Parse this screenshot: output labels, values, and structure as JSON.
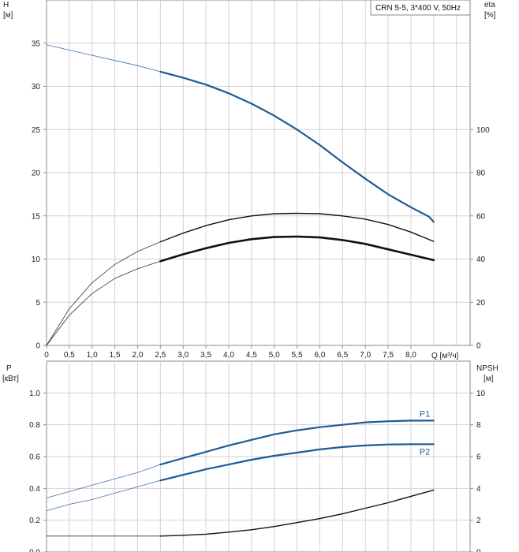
{
  "legend": "CRN 5-5, 3*400 V, 50Hz",
  "colors": {
    "blue": "#1f5a96",
    "black": "#111111",
    "grid": "#d2d2d2",
    "frame": "#8a8a8a"
  },
  "chart_data": [
    {
      "type": "line",
      "panel": "top",
      "left_axis_title": [
        "H",
        "[м]"
      ],
      "right_axis_title": [
        "eta",
        "[%]"
      ],
      "x_axis_title": "Q [м³/ч]",
      "x_tick_labels": [
        "0",
        "0,5",
        "1,0",
        "1,5",
        "2,0",
        "2,5",
        "3,0",
        "3,5",
        "4,0",
        "4,5",
        "5,0",
        "5,5",
        "6,0",
        "6,5",
        "7,0",
        "7,5",
        "8,0"
      ],
      "xlim": [
        0,
        9.3
      ],
      "left_ylim": [
        0,
        40
      ],
      "left_ticks": [
        0,
        5,
        10,
        15,
        20,
        25,
        30,
        35
      ],
      "right_ylim": [
        0,
        160
      ],
      "right_ticks": [
        0,
        20,
        40,
        60,
        80,
        100
      ],
      "legend_position": "top-right",
      "grid": true,
      "series": [
        {
          "axis": "left",
          "color": "blue",
          "operating_from": 2.5,
          "points": [
            [
              0,
              34.8
            ],
            [
              0.5,
              34.2
            ],
            [
              1.0,
              33.6
            ],
            [
              1.5,
              33.0
            ],
            [
              2.0,
              32.4
            ],
            [
              2.5,
              31.7
            ],
            [
              3.0,
              31.0
            ],
            [
              3.5,
              30.2
            ],
            [
              4.0,
              29.2
            ],
            [
              4.5,
              28.0
            ],
            [
              5.0,
              26.6
            ],
            [
              5.5,
              25.0
            ],
            [
              6.0,
              23.2
            ],
            [
              6.5,
              21.2
            ],
            [
              7.0,
              19.3
            ],
            [
              7.5,
              17.5
            ],
            [
              8.0,
              16.0
            ],
            [
              8.4,
              14.9
            ],
            [
              8.5,
              14.3
            ]
          ]
        },
        {
          "axis": "right",
          "color": "black",
          "operating_from": 2.5,
          "points": [
            [
              0,
              0
            ],
            [
              0.5,
              17
            ],
            [
              1.0,
              29
            ],
            [
              1.5,
              37.5
            ],
            [
              2.0,
              43.5
            ],
            [
              2.5,
              48
            ],
            [
              3.0,
              52
            ],
            [
              3.5,
              55.5
            ],
            [
              4.0,
              58.2
            ],
            [
              4.5,
              60
            ],
            [
              5.0,
              61
            ],
            [
              5.5,
              61.2
            ],
            [
              6.0,
              61
            ],
            [
              6.5,
              60
            ],
            [
              7.0,
              58.5
            ],
            [
              7.5,
              56
            ],
            [
              8.0,
              52.5
            ],
            [
              8.5,
              48.2
            ]
          ]
        },
        {
          "axis": "right",
          "color": "black",
          "operating_from": 2.5,
          "bold": true,
          "points": [
            [
              0,
              0
            ],
            [
              0.5,
              14
            ],
            [
              1.0,
              24
            ],
            [
              1.5,
              31
            ],
            [
              2.0,
              35.5
            ],
            [
              2.5,
              39
            ],
            [
              3.0,
              42.2
            ],
            [
              3.5,
              45
            ],
            [
              4.0,
              47.5
            ],
            [
              4.5,
              49.2
            ],
            [
              5.0,
              50.2
            ],
            [
              5.5,
              50.4
            ],
            [
              6.0,
              50
            ],
            [
              6.5,
              48.8
            ],
            [
              7.0,
              47
            ],
            [
              7.5,
              44.5
            ],
            [
              8.0,
              42
            ],
            [
              8.5,
              39.5
            ]
          ]
        }
      ]
    },
    {
      "type": "line",
      "panel": "bottom",
      "left_axis_title": [
        "P",
        "[кВт]"
      ],
      "right_axis_title": [
        "NPSH",
        "[м]"
      ],
      "xlim": [
        0,
        9.3
      ],
      "left_ylim": [
        0,
        1.2
      ],
      "left_ticks": [
        0.0,
        0.2,
        0.4,
        0.6,
        0.8,
        1.0
      ],
      "left_tick_labels": [
        "0.0",
        "0.2",
        "0.4",
        "0.6",
        "0.8",
        "1.0"
      ],
      "right_ylim": [
        0,
        12
      ],
      "right_ticks": [
        0,
        2,
        4,
        6,
        8,
        10
      ],
      "grid": true,
      "series": [
        {
          "name": "P1",
          "axis": "left",
          "color": "blue",
          "operating_from": 2.5,
          "points": [
            [
              0,
              0.34
            ],
            [
              0.5,
              0.38
            ],
            [
              1.0,
              0.42
            ],
            [
              1.5,
              0.46
            ],
            [
              2.0,
              0.5
            ],
            [
              2.5,
              0.55
            ],
            [
              3.0,
              0.59
            ],
            [
              3.5,
              0.63
            ],
            [
              4.0,
              0.67
            ],
            [
              4.5,
              0.705
            ],
            [
              5.0,
              0.74
            ],
            [
              5.5,
              0.765
            ],
            [
              6.0,
              0.785
            ],
            [
              6.5,
              0.8
            ],
            [
              7.0,
              0.815
            ],
            [
              7.5,
              0.822
            ],
            [
              8.0,
              0.826
            ],
            [
              8.5,
              0.826
            ]
          ]
        },
        {
          "name": "P2",
          "axis": "left",
          "color": "blue",
          "operating_from": 2.5,
          "points": [
            [
              0,
              0.26
            ],
            [
              0.5,
              0.3
            ],
            [
              1.0,
              0.33
            ],
            [
              1.5,
              0.37
            ],
            [
              2.0,
              0.41
            ],
            [
              2.5,
              0.45
            ],
            [
              3.0,
              0.485
            ],
            [
              3.5,
              0.52
            ],
            [
              4.0,
              0.55
            ],
            [
              4.5,
              0.58
            ],
            [
              5.0,
              0.605
            ],
            [
              5.5,
              0.625
            ],
            [
              6.0,
              0.645
            ],
            [
              6.5,
              0.66
            ],
            [
              7.0,
              0.67
            ],
            [
              7.5,
              0.676
            ],
            [
              8.0,
              0.678
            ],
            [
              8.5,
              0.678
            ]
          ]
        },
        {
          "axis": "right",
          "color": "black",
          "operating_from": 2.5,
          "points": [
            [
              0,
              1.0
            ],
            [
              1.0,
              1.0
            ],
            [
              2.0,
              1.0
            ],
            [
              2.5,
              1.0
            ],
            [
              3.0,
              1.05
            ],
            [
              3.5,
              1.12
            ],
            [
              4.0,
              1.25
            ],
            [
              4.5,
              1.4
            ],
            [
              5.0,
              1.6
            ],
            [
              5.5,
              1.85
            ],
            [
              6.0,
              2.1
            ],
            [
              6.5,
              2.4
            ],
            [
              7.0,
              2.75
            ],
            [
              7.5,
              3.1
            ],
            [
              8.0,
              3.5
            ],
            [
              8.5,
              3.9
            ]
          ]
        }
      ]
    }
  ]
}
